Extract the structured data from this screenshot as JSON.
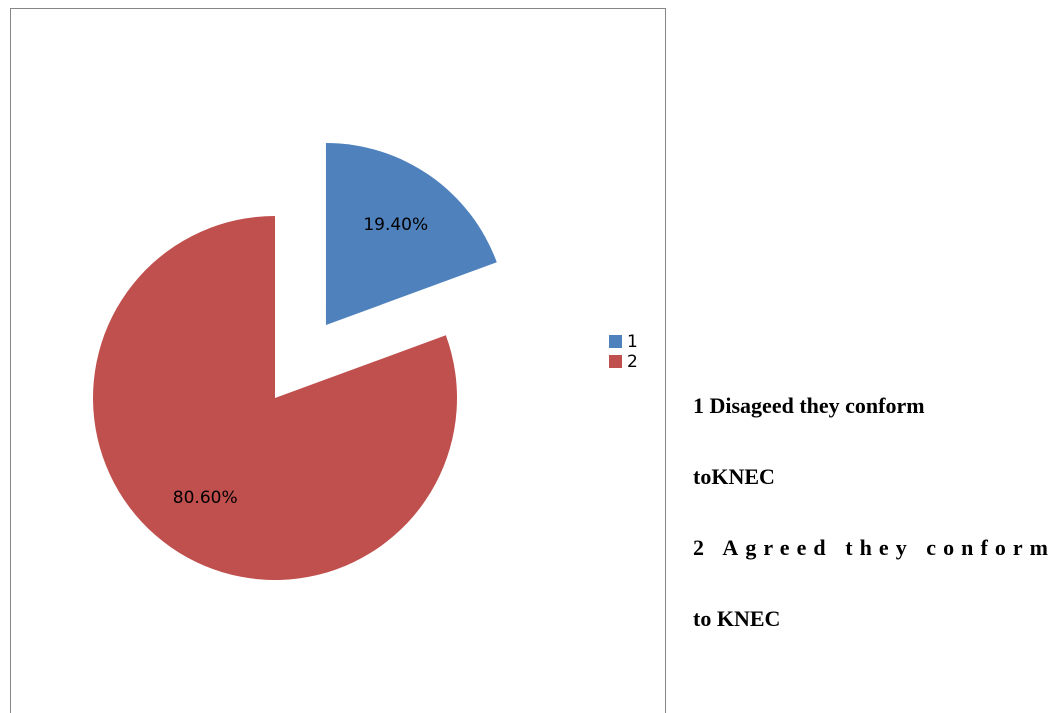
{
  "chart_data": {
    "type": "pie",
    "categories": [
      "1",
      "2"
    ],
    "values": [
      19.4,
      80.6
    ],
    "value_labels": [
      "19.40%",
      "80.60%"
    ],
    "colors": [
      "#4f81bd",
      "#c0504d"
    ],
    "legend": "right",
    "annotations": [
      "1 Disageed they conform",
      "toKNEC",
      "2 Agreed they conform",
      "to KNEC"
    ]
  }
}
